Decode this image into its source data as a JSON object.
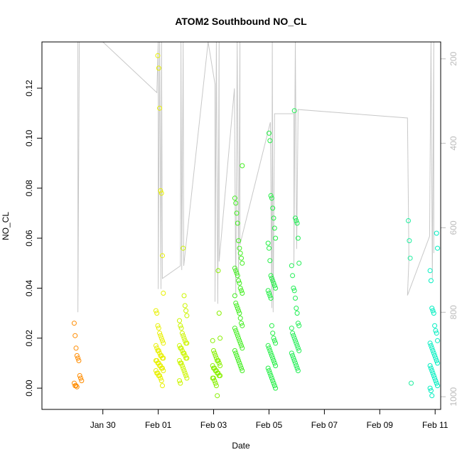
{
  "chart_data": {
    "type": "scatter",
    "title": "ATOM2 Southbound NO_CL",
    "xlabel": "Date",
    "ylabel": "NO_CL",
    "xlim": [
      -3.2,
      11.2
    ],
    "ylim": [
      -0.0085,
      0.1385
    ],
    "x_ticks": [
      {
        "value": -1,
        "label": "Jan 30"
      },
      {
        "value": 1,
        "label": "Feb 01"
      },
      {
        "value": 3,
        "label": "Feb 03"
      },
      {
        "value": 5,
        "label": "Feb 05"
      },
      {
        "value": 7,
        "label": "Feb 07"
      },
      {
        "value": 9,
        "label": "Feb 09"
      },
      {
        "value": 11,
        "label": "Feb 11"
      }
    ],
    "y_ticks": [
      0.0,
      0.02,
      0.04,
      0.06,
      0.08,
      0.1,
      0.12
    ],
    "y_tick_labels": [
      "0.00",
      "0.02",
      "0.04",
      "0.06",
      "0.08",
      "0.10",
      "0.12"
    ],
    "secondary_y": {
      "label": "",
      "lim": [
        1030,
        160
      ],
      "reversed": true,
      "ticks": [
        200,
        400,
        600,
        800,
        1000
      ],
      "tick_labels": [
        "200",
        "400",
        "600",
        "800",
        "1000"
      ],
      "color": "#bbbbbb"
    },
    "grid": false,
    "color_scale": "date-gradient orange → yellow → green → cyan",
    "series": [
      {
        "x": -1.9,
        "values": [
          0.026,
          0.021,
          0.016,
          0.013,
          0.012,
          0.011,
          0.005,
          0.004,
          0.003,
          0.002,
          0.001,
          0.001,
          0.0005
        ],
        "color": "#ff8c00"
      },
      {
        "x": 1.05,
        "values": [
          0.133,
          0.128,
          0.112,
          0.079,
          0.078,
          0.053,
          0.038,
          0.031,
          0.03,
          0.025,
          0.024,
          0.022,
          0.021,
          0.02,
          0.019,
          0.018,
          0.017,
          0.016,
          0.015,
          0.015,
          0.014,
          0.013,
          0.013,
          0.012,
          0.012,
          0.011,
          0.011,
          0.01,
          0.01,
          0.009,
          0.009,
          0.008,
          0.008,
          0.007,
          0.007,
          0.006,
          0.006,
          0.005,
          0.005,
          0.004,
          0.003,
          0.001
        ],
        "color": "#e8f000"
      },
      {
        "x": 1.9,
        "values": [
          0.056,
          0.037,
          0.033,
          0.031,
          0.029,
          0.027,
          0.025,
          0.024,
          0.022,
          0.021,
          0.02,
          0.019,
          0.018,
          0.018,
          0.017,
          0.016,
          0.016,
          0.015,
          0.014,
          0.014,
          0.013,
          0.012,
          0.012,
          0.011,
          0.01,
          0.01,
          0.009,
          0.008,
          0.007,
          0.006,
          0.005,
          0.004,
          0.003,
          0.002
        ],
        "color": "#ccf500"
      },
      {
        "x": 3.1,
        "values": [
          0.047,
          0.03,
          0.02,
          0.019,
          0.015,
          0.014,
          0.013,
          0.012,
          0.011,
          0.011,
          0.01,
          0.009,
          0.009,
          0.008,
          0.008,
          0.007,
          0.007,
          0.006,
          0.006,
          0.005,
          0.005,
          0.004,
          0.004,
          0.003,
          0.002,
          0.001,
          -0.003
        ],
        "color": "#88f000"
      },
      {
        "x": 3.9,
        "values": [
          0.089,
          0.076,
          0.074,
          0.07,
          0.066,
          0.059,
          0.056,
          0.054,
          0.052,
          0.05,
          0.048,
          0.047,
          0.046,
          0.045,
          0.043,
          0.042,
          0.04,
          0.039,
          0.038,
          0.037,
          0.034,
          0.033,
          0.032,
          0.031,
          0.03,
          0.028,
          0.026,
          0.025,
          0.024,
          0.023,
          0.022,
          0.021,
          0.02,
          0.019,
          0.018,
          0.017,
          0.016,
          0.015,
          0.014,
          0.013,
          0.012,
          0.011,
          0.01,
          0.009,
          0.008,
          0.007
        ],
        "color": "#44ee22"
      },
      {
        "x": 5.1,
        "values": [
          0.102,
          0.099,
          0.077,
          0.076,
          0.072,
          0.068,
          0.064,
          0.06,
          0.058,
          0.056,
          0.051,
          0.045,
          0.044,
          0.043,
          0.042,
          0.041,
          0.04,
          0.039,
          0.038,
          0.037,
          0.036,
          0.025,
          0.022,
          0.02,
          0.019,
          0.018,
          0.017,
          0.016,
          0.015,
          0.014,
          0.013,
          0.012,
          0.011,
          0.01,
          0.009,
          0.008,
          0.007,
          0.006,
          0.005,
          0.004,
          0.003,
          0.002,
          0.001,
          0.0
        ],
        "color": "#22ee44"
      },
      {
        "x": 5.95,
        "values": [
          0.111,
          0.068,
          0.067,
          0.066,
          0.06,
          0.05,
          0.049,
          0.045,
          0.04,
          0.039,
          0.036,
          0.032,
          0.03,
          0.026,
          0.025,
          0.024,
          0.022,
          0.021,
          0.02,
          0.019,
          0.018,
          0.017,
          0.016,
          0.015,
          0.014,
          0.013,
          0.012,
          0.011,
          0.01,
          0.009,
          0.008,
          0.007
        ],
        "color": "#22ee55"
      },
      {
        "x": 10.0,
        "values": [
          0.067,
          0.059,
          0.052,
          0.002
        ],
        "color": "#22eea0"
      },
      {
        "x": 10.95,
        "values": [
          0.062,
          0.056,
          0.047,
          0.043,
          0.032,
          0.031,
          0.03,
          0.025,
          0.023,
          0.022,
          0.019,
          0.018,
          0.017,
          0.016,
          0.015,
          0.014,
          0.013,
          0.012,
          0.011,
          0.01,
          0.009,
          0.008,
          0.007,
          0.006,
          0.005,
          0.004,
          0.003,
          0.002,
          0.001,
          0.0,
          -0.001,
          -0.003
        ],
        "color": "#00eec0"
      }
    ],
    "depth_track": [
      [
        -1.9,
        160
      ],
      [
        -1.9,
        800
      ],
      [
        -1.85,
        160
      ],
      [
        -1.0,
        160
      ],
      [
        0.95,
        280
      ],
      [
        1.0,
        160
      ],
      [
        1.0,
        745
      ],
      [
        1.05,
        160
      ],
      [
        1.1,
        745
      ],
      [
        1.12,
        160
      ],
      [
        1.15,
        720
      ],
      [
        1.8,
        690
      ],
      [
        1.82,
        160
      ],
      [
        1.85,
        700
      ],
      [
        1.9,
        160
      ],
      [
        1.92,
        690
      ],
      [
        2.8,
        160
      ],
      [
        3.05,
        260
      ],
      [
        3.05,
        775
      ],
      [
        3.1,
        160
      ],
      [
        3.15,
        780
      ],
      [
        3.2,
        160
      ],
      [
        3.2,
        680
      ],
      [
        3.75,
        270
      ],
      [
        3.8,
        760
      ],
      [
        3.85,
        160
      ],
      [
        3.9,
        720
      ],
      [
        3.95,
        160
      ],
      [
        3.95,
        640
      ],
      [
        5.05,
        350
      ],
      [
        5.1,
        790
      ],
      [
        5.12,
        160
      ],
      [
        5.15,
        800
      ],
      [
        5.2,
        330
      ],
      [
        5.9,
        330
      ],
      [
        5.9,
        690
      ],
      [
        5.95,
        160
      ],
      [
        6.0,
        650
      ],
      [
        6.05,
        320
      ],
      [
        10.0,
        340
      ],
      [
        10.05,
        650
      ],
      [
        10.05,
        680
      ],
      [
        10.0,
        760
      ],
      [
        10.8,
        620
      ],
      [
        10.85,
        160
      ],
      [
        10.9,
        720
      ],
      [
        10.95,
        160
      ],
      [
        10.95,
        660
      ]
    ]
  }
}
